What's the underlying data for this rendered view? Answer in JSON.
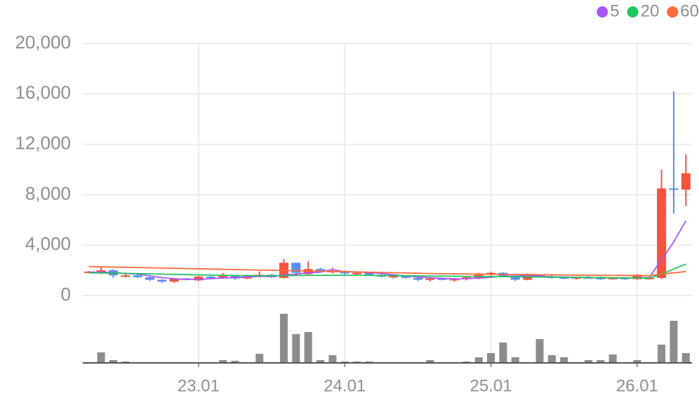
{
  "chart_data": {
    "type": "candlestick",
    "categories": [
      null,
      null,
      null,
      null,
      null,
      null,
      null,
      null,
      null,
      "23.01",
      null,
      null,
      null,
      null,
      null,
      null,
      null,
      null,
      null,
      null,
      null,
      "24.01",
      null,
      null,
      null,
      null,
      null,
      null,
      null,
      null,
      null,
      null,
      null,
      "25.01",
      null,
      null,
      null,
      null,
      null,
      null,
      null,
      null,
      null,
      null,
      null,
      "26.01",
      null,
      null,
      null,
      null
    ],
    "open": [
      1850,
      1900,
      2000,
      1500,
      1600,
      1450,
      1250,
      1100,
      1350,
      1200,
      1500,
      1400,
      1550,
      1350,
      1500,
      1650,
      1400,
      2600,
      1700,
      2100,
      1900,
      1950,
      1750,
      1800,
      1650,
      1500,
      1550,
      1400,
      1250,
      1350,
      1200,
      1350,
      1400,
      1650,
      1800,
      1500,
      1250,
      1650,
      1500,
      1450,
      1350,
      1450,
      1400,
      1350,
      1400,
      1300,
      1350,
      1400,
      8500,
      8400
    ],
    "high": [
      1950,
      2300,
      2100,
      1700,
      1650,
      1500,
      1300,
      1400,
      1400,
      1550,
      1550,
      1800,
      1600,
      1550,
      1900,
      1700,
      2900,
      2600,
      2700,
      2200,
      2200,
      2000,
      1900,
      1850,
      1750,
      1650,
      1600,
      1550,
      1400,
      1400,
      1400,
      1550,
      1800,
      1900,
      1850,
      1650,
      1750,
      1700,
      1600,
      1500,
      1500,
      1550,
      1500,
      1450,
      1450,
      1700,
      1450,
      10000,
      16200,
      11200
    ],
    "low": [
      1800,
      1700,
      1400,
      1450,
      1400,
      1150,
      1000,
      1000,
      1200,
      1150,
      1350,
      1350,
      1250,
      1300,
      1450,
      1400,
      1350,
      1700,
      1600,
      1800,
      1750,
      1650,
      1650,
      1600,
      1450,
      1350,
      1350,
      1150,
      1100,
      1200,
      1100,
      1200,
      1300,
      1400,
      1450,
      1150,
      1200,
      1400,
      1350,
      1300,
      1250,
      1350,
      1250,
      1250,
      1250,
      1250,
      1300,
      1300,
      6500,
      7100
    ],
    "close": [
      1900,
      2000,
      1600,
      1600,
      1450,
      1250,
      1100,
      1350,
      1250,
      1500,
      1450,
      1550,
      1350,
      1550,
      1650,
      1450,
      2600,
      1800,
      2100,
      1850,
      1950,
      1750,
      1800,
      1650,
      1500,
      1550,
      1400,
      1250,
      1350,
      1250,
      1350,
      1450,
      1650,
      1800,
      1550,
      1250,
      1650,
      1450,
      1450,
      1350,
      1450,
      1400,
      1350,
      1400,
      1300,
      1650,
      1400,
      8500,
      8400,
      9700
    ],
    "up_color": "#f5533d",
    "down_color": "#5b8def",
    "series": [
      {
        "name": "5",
        "color": "#a855f7",
        "values": [
          1850,
          1850,
          1820,
          1750,
          1700,
          1560,
          1420,
          1330,
          1280,
          1290,
          1330,
          1400,
          1420,
          1480,
          1510,
          1520,
          1630,
          1690,
          1800,
          1860,
          2060,
          1890,
          1870,
          1830,
          1750,
          1650,
          1560,
          1470,
          1410,
          1360,
          1320,
          1330,
          1380,
          1450,
          1540,
          1540,
          1590,
          1540,
          1480,
          1460,
          1450,
          1430,
          1410,
          1400,
          1370,
          1420,
          1430,
          2850,
          4250,
          5930
        ]
      },
      {
        "name": "20",
        "color": "#22c55e",
        "values": [
          1800,
          1790,
          1780,
          1760,
          1740,
          1720,
          1700,
          1680,
          1660,
          1640,
          1620,
          1600,
          1590,
          1580,
          1570,
          1570,
          1580,
          1590,
          1600,
          1600,
          1610,
          1610,
          1600,
          1600,
          1590,
          1580,
          1570,
          1560,
          1550,
          1540,
          1530,
          1520,
          1510,
          1500,
          1500,
          1490,
          1480,
          1470,
          1460,
          1450,
          1440,
          1430,
          1420,
          1410,
          1400,
          1400,
          1390,
          1700,
          2100,
          2500
        ]
      },
      {
        "name": "60",
        "color": "#ff6a3d",
        "values": [
          2300,
          2280,
          2260,
          2240,
          2220,
          2200,
          2180,
          2160,
          2140,
          2120,
          2100,
          2080,
          2060,
          2040,
          2020,
          2000,
          1990,
          1970,
          1950,
          1930,
          1910,
          1890,
          1870,
          1850,
          1830,
          1810,
          1790,
          1770,
          1750,
          1730,
          1720,
          1710,
          1700,
          1690,
          1680,
          1670,
          1660,
          1650,
          1640,
          1630,
          1620,
          1610,
          1600,
          1600,
          1590,
          1590,
          1580,
          1700,
          1800,
          1900
        ]
      }
    ],
    "volume": [
      1,
      15,
      4,
      2,
      1,
      1,
      1,
      1,
      1,
      1,
      1,
      4,
      3,
      1,
      13,
      1,
      70,
      41,
      44,
      4,
      11,
      2,
      2,
      2,
      1,
      1,
      1,
      1,
      4,
      1,
      1,
      2,
      8,
      14,
      29,
      8,
      1,
      34,
      11,
      8,
      1,
      4,
      4,
      12,
      1,
      4,
      1,
      26,
      60,
      14
    ],
    "volume_ylim": [
      0,
      72
    ],
    "volume_color": "#8c8c8c",
    "ylim": [
      0,
      20000
    ],
    "yticks": [
      {
        "value": 0,
        "label": "0"
      },
      {
        "value": 4000,
        "label": "4,000"
      },
      {
        "value": 8000,
        "label": "8,000"
      },
      {
        "value": 12000,
        "label": "12,000"
      },
      {
        "value": 16000,
        "label": "16,000"
      },
      {
        "value": 20000,
        "label": "20,000"
      }
    ],
    "grid": true,
    "legend": "top-right"
  }
}
